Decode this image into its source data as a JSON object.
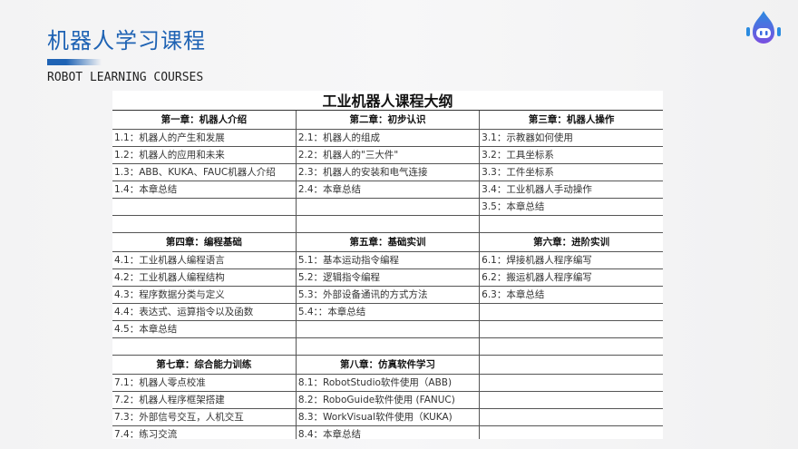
{
  "header": {
    "title": "机器人学习课程",
    "subtitle": "ROBOT LEARNING COURSES",
    "accent": "#1f63b4"
  },
  "sheet": {
    "title": "工业机器人课程大纲",
    "blocks": [
      {
        "rows": 5,
        "chapters": [
          {
            "title": "第一章：机器人介绍",
            "items": [
              "1.1：机器人的产生和发展",
              "1.2：机器人的应用和未来",
              "1.3：ABB、KUKA、FAUC机器人介绍",
              "1.4：本章总结"
            ]
          },
          {
            "title": "第二章：初步认识",
            "items": [
              "2.1：机器人的组成",
              "2.2：机器人的\"三大件\"",
              "2.3：机器人的安装和电气连接",
              "2.4：本章总结"
            ]
          },
          {
            "title": "第三章：机器人操作",
            "items": [
              "3.1：示教器如何使用",
              "3.2：工具坐标系",
              "3.3：工件坐标系",
              "3.4：工业机器人手动操作",
              "3.5：本章总结"
            ]
          }
        ]
      },
      {
        "rows": 5,
        "chapters": [
          {
            "title": "第四章：编程基础",
            "items": [
              "4.1：工业机器人编程语言",
              "4.2：工业机器人编程结构",
              "4.3：程序数据分类与定义",
              "4.4：表达式、运算指令以及函数",
              "4.5：本章总结"
            ]
          },
          {
            "title": "第五章：基础实训",
            "items": [
              "5.1：基本运动指令编程",
              "5.2：逻辑指令编程",
              "5.3：外部设备通讯的方式方法",
              "5.4：：本章总结"
            ]
          },
          {
            "title": "第六章：进阶实训",
            "items": [
              "6.1：焊接机器人程序编写",
              "6.2：搬运机器人程序编写",
              "6.3：本章总结"
            ]
          }
        ]
      },
      {
        "rows": 4,
        "chapters": [
          {
            "title": "第七章：综合能力训练",
            "items": [
              "7.1：机器人零点校准",
              "7.2：机器人程序框架搭建",
              "7.3：外部信号交互，人机交互",
              "7.4：练习交流"
            ]
          },
          {
            "title": "第八章：仿真软件学习",
            "items": [
              "8.1：RobotStudio软件使用（ABB)",
              "8.2：RoboGuide软件使用 (FANUC)",
              "8.3：WorkVisual软件使用（KUKA)",
              "8.4：本章总结"
            ]
          },
          {
            "title": "",
            "items": []
          }
        ]
      }
    ]
  }
}
